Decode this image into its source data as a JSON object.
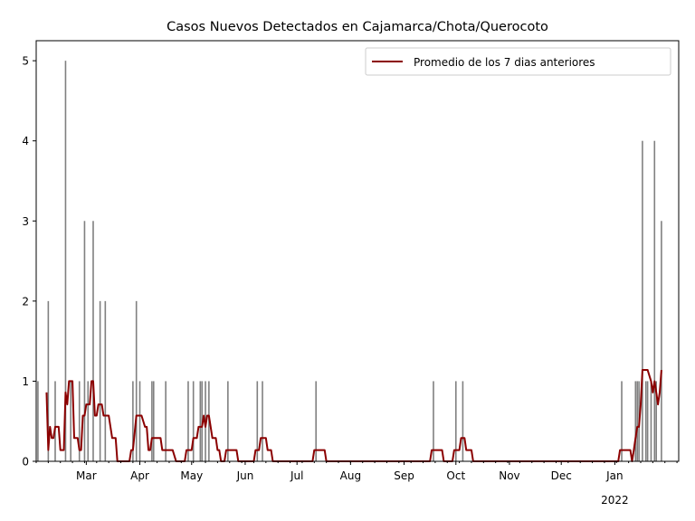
{
  "chart_data": {
    "type": "bar",
    "title": "Casos Nuevos Detectados en Cajamarca/Chota/Querocoto",
    "xlabel": "",
    "ylabel": "",
    "x_range": [
      "2021-01-31",
      "2022-02-07"
    ],
    "ylim": [
      0,
      5.25
    ],
    "yticks": [
      0,
      1,
      2,
      3,
      4,
      5
    ],
    "xticks": [
      {
        "date": "2021-03-01",
        "label": "Mar",
        "sublabel": ""
      },
      {
        "date": "2021-04-01",
        "label": "Apr",
        "sublabel": ""
      },
      {
        "date": "2021-05-01",
        "label": "May",
        "sublabel": ""
      },
      {
        "date": "2021-06-01",
        "label": "Jun",
        "sublabel": ""
      },
      {
        "date": "2021-07-01",
        "label": "Jul",
        "sublabel": ""
      },
      {
        "date": "2021-08-01",
        "label": "Aug",
        "sublabel": ""
      },
      {
        "date": "2021-09-01",
        "label": "Sep",
        "sublabel": ""
      },
      {
        "date": "2021-10-01",
        "label": "Oct",
        "sublabel": ""
      },
      {
        "date": "2021-11-01",
        "label": "Nov",
        "sublabel": ""
      },
      {
        "date": "2021-12-01",
        "label": "Dec",
        "sublabel": ""
      },
      {
        "date": "2022-01-01",
        "label": "Jan",
        "sublabel": "2022"
      }
    ],
    "grid": false,
    "legend": {
      "placement": "top-right",
      "entries": [
        "Promedio de los 7 dias anteriores"
      ]
    },
    "series": [
      {
        "type": "bar",
        "color": "#808080",
        "points": [
          [
            "2021-02-01",
            1
          ],
          [
            "2021-02-07",
            2
          ],
          [
            "2021-02-11",
            1
          ],
          [
            "2021-02-17",
            5
          ],
          [
            "2021-02-20",
            1
          ],
          [
            "2021-02-25",
            1
          ],
          [
            "2021-02-28",
            3
          ],
          [
            "2021-03-02",
            1
          ],
          [
            "2021-03-05",
            3
          ],
          [
            "2021-03-09",
            2
          ],
          [
            "2021-03-12",
            2
          ],
          [
            "2021-03-28",
            1
          ],
          [
            "2021-03-30",
            2
          ],
          [
            "2021-04-01",
            1
          ],
          [
            "2021-04-08",
            1
          ],
          [
            "2021-04-09",
            1
          ],
          [
            "2021-04-16",
            1
          ],
          [
            "2021-04-29",
            1
          ],
          [
            "2021-05-02",
            1
          ],
          [
            "2021-05-06",
            1
          ],
          [
            "2021-05-07",
            1
          ],
          [
            "2021-05-09",
            1
          ],
          [
            "2021-05-11",
            1
          ],
          [
            "2021-05-22",
            1
          ],
          [
            "2021-06-08",
            1
          ],
          [
            "2021-06-11",
            1
          ],
          [
            "2021-07-12",
            1
          ],
          [
            "2021-09-18",
            1
          ],
          [
            "2021-10-01",
            1
          ],
          [
            "2021-10-05",
            1
          ],
          [
            "2022-01-05",
            1
          ],
          [
            "2022-01-13",
            1
          ],
          [
            "2022-01-14",
            1
          ],
          [
            "2022-01-15",
            1
          ],
          [
            "2022-01-17",
            4
          ],
          [
            "2022-01-19",
            1
          ],
          [
            "2022-01-20",
            1
          ],
          [
            "2022-01-22",
            1
          ],
          [
            "2022-01-24",
            4
          ],
          [
            "2022-01-25",
            1
          ],
          [
            "2022-01-28",
            3
          ]
        ]
      },
      {
        "type": "line",
        "name": "Promedio de los 7 dias anteriores",
        "color": "#8b0000",
        "points": [
          [
            "2021-02-06",
            0.86
          ],
          [
            "2021-02-07",
            0.14
          ],
          [
            "2021-02-08",
            0.43
          ],
          [
            "2021-02-09",
            0.29
          ],
          [
            "2021-02-10",
            0.29
          ],
          [
            "2021-02-11",
            0.43
          ],
          [
            "2021-02-13",
            0.43
          ],
          [
            "2021-02-14",
            0.14
          ],
          [
            "2021-02-16",
            0.14
          ],
          [
            "2021-02-17",
            0.86
          ],
          [
            "2021-02-18",
            0.71
          ],
          [
            "2021-02-19",
            1.0
          ],
          [
            "2021-02-20",
            1.0
          ],
          [
            "2021-02-21",
            1.0
          ],
          [
            "2021-02-22",
            0.29
          ],
          [
            "2021-02-24",
            0.29
          ],
          [
            "2021-02-25",
            0.14
          ],
          [
            "2021-02-26",
            0.14
          ],
          [
            "2021-02-27",
            0.57
          ],
          [
            "2021-02-28",
            0.57
          ],
          [
            "2021-03-01",
            0.71
          ],
          [
            "2021-03-03",
            0.71
          ],
          [
            "2021-03-04",
            1.0
          ],
          [
            "2021-03-05",
            1.0
          ],
          [
            "2021-03-06",
            0.57
          ],
          [
            "2021-03-07",
            0.57
          ],
          [
            "2021-03-08",
            0.71
          ],
          [
            "2021-03-10",
            0.71
          ],
          [
            "2021-03-11",
            0.57
          ],
          [
            "2021-03-14",
            0.57
          ],
          [
            "2021-03-16",
            0.29
          ],
          [
            "2021-03-18",
            0.29
          ],
          [
            "2021-03-19",
            0.0
          ],
          [
            "2021-03-26",
            0.0
          ],
          [
            "2021-03-27",
            0.14
          ],
          [
            "2021-03-28",
            0.14
          ],
          [
            "2021-03-30",
            0.57
          ],
          [
            "2021-04-02",
            0.57
          ],
          [
            "2021-04-04",
            0.43
          ],
          [
            "2021-04-05",
            0.43
          ],
          [
            "2021-04-06",
            0.14
          ],
          [
            "2021-04-07",
            0.14
          ],
          [
            "2021-04-08",
            0.29
          ],
          [
            "2021-04-13",
            0.29
          ],
          [
            "2021-04-14",
            0.14
          ],
          [
            "2021-04-20",
            0.14
          ],
          [
            "2021-04-22",
            0.0
          ],
          [
            "2021-04-27",
            0.0
          ],
          [
            "2021-04-28",
            0.14
          ],
          [
            "2021-05-01",
            0.14
          ],
          [
            "2021-05-02",
            0.29
          ],
          [
            "2021-05-04",
            0.29
          ],
          [
            "2021-05-05",
            0.43
          ],
          [
            "2021-05-07",
            0.43
          ],
          [
            "2021-05-08",
            0.57
          ],
          [
            "2021-05-09",
            0.43
          ],
          [
            "2021-05-10",
            0.57
          ],
          [
            "2021-05-11",
            0.57
          ],
          [
            "2021-05-13",
            0.29
          ],
          [
            "2021-05-15",
            0.29
          ],
          [
            "2021-05-16",
            0.14
          ],
          [
            "2021-05-17",
            0.14
          ],
          [
            "2021-05-18",
            0.0
          ],
          [
            "2021-05-20",
            0.0
          ],
          [
            "2021-05-21",
            0.14
          ],
          [
            "2021-05-27",
            0.14
          ],
          [
            "2021-05-28",
            0.0
          ],
          [
            "2021-06-06",
            0.0
          ],
          [
            "2021-06-07",
            0.14
          ],
          [
            "2021-06-09",
            0.14
          ],
          [
            "2021-06-10",
            0.29
          ],
          [
            "2021-06-13",
            0.29
          ],
          [
            "2021-06-14",
            0.14
          ],
          [
            "2021-06-16",
            0.14
          ],
          [
            "2021-06-17",
            0.0
          ],
          [
            "2021-07-10",
            0.0
          ],
          [
            "2021-07-11",
            0.14
          ],
          [
            "2021-07-17",
            0.14
          ],
          [
            "2021-07-18",
            0.0
          ],
          [
            "2021-09-16",
            0.0
          ],
          [
            "2021-09-17",
            0.14
          ],
          [
            "2021-09-23",
            0.14
          ],
          [
            "2021-09-24",
            0.0
          ],
          [
            "2021-09-29",
            0.0
          ],
          [
            "2021-09-30",
            0.14
          ],
          [
            "2021-10-03",
            0.14
          ],
          [
            "2021-10-04",
            0.29
          ],
          [
            "2021-10-06",
            0.29
          ],
          [
            "2021-10-07",
            0.14
          ],
          [
            "2021-10-10",
            0.14
          ],
          [
            "2021-10-11",
            0.0
          ],
          [
            "2022-01-03",
            0.0
          ],
          [
            "2022-01-04",
            0.14
          ],
          [
            "2022-01-10",
            0.14
          ],
          [
            "2022-01-11",
            0.0
          ],
          [
            "2022-01-12",
            0.14
          ],
          [
            "2022-01-13",
            0.29
          ],
          [
            "2022-01-14",
            0.43
          ],
          [
            "2022-01-15",
            0.43
          ],
          [
            "2022-01-16",
            0.71
          ],
          [
            "2022-01-17",
            1.14
          ],
          [
            "2022-01-20",
            1.14
          ],
          [
            "2022-01-22",
            1.0
          ],
          [
            "2022-01-23",
            0.86
          ],
          [
            "2022-01-24",
            1.0
          ],
          [
            "2022-01-25",
            0.86
          ],
          [
            "2022-01-26",
            0.71
          ],
          [
            "2022-01-27",
            0.86
          ],
          [
            "2022-01-28",
            1.14
          ]
        ]
      }
    ]
  }
}
